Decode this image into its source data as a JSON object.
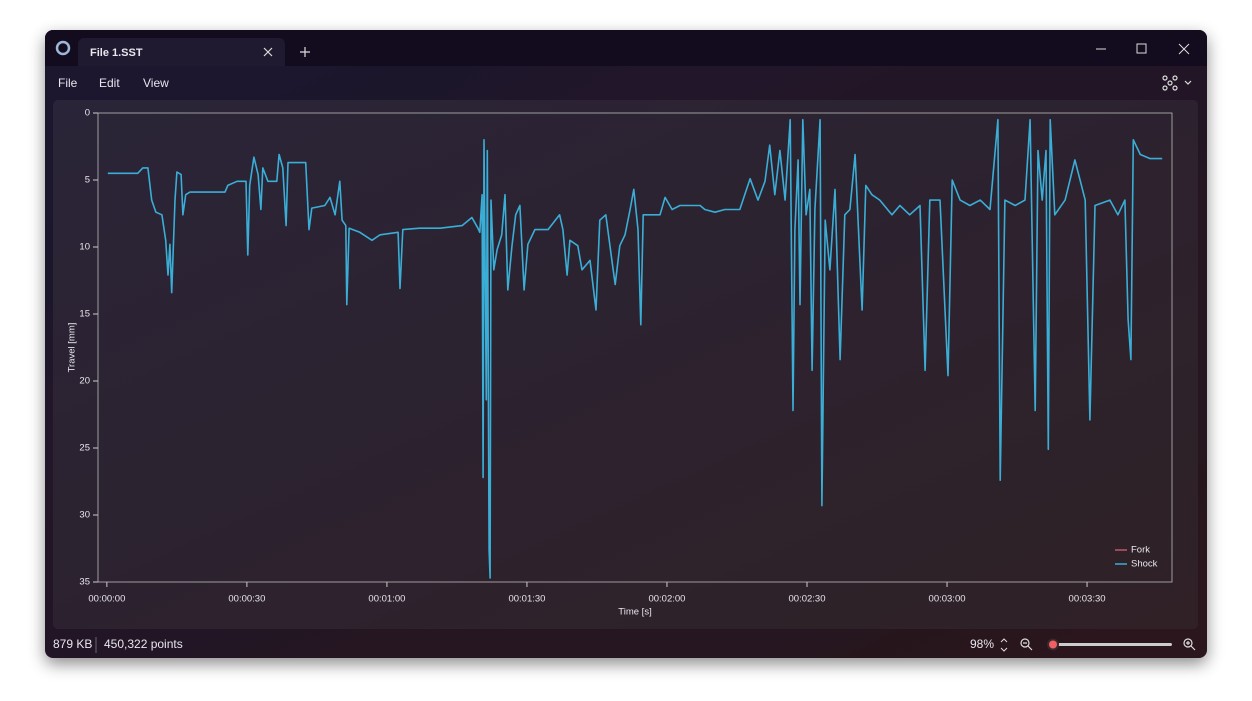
{
  "tab": {
    "title": "File 1.SST"
  },
  "menu": [
    "File",
    "Edit",
    "View"
  ],
  "status": {
    "size": "879 KB",
    "points": "450,322 points",
    "zoom": "98%"
  },
  "chart_data": {
    "type": "line",
    "xlabel": "Time [s]",
    "ylabel": "Travel [mm]",
    "xlim": [
      -1.9,
      228.2
    ],
    "xticks": [
      {
        "value": 0,
        "label": "00:00:00"
      },
      {
        "value": 30,
        "label": "00:00:30"
      },
      {
        "value": 60,
        "label": "00:01:00"
      },
      {
        "value": 90,
        "label": "00:01:30"
      },
      {
        "value": 120,
        "label": "00:02:00"
      },
      {
        "value": 150,
        "label": "00:02:30"
      },
      {
        "value": 180,
        "label": "00:03:00"
      },
      {
        "value": 210,
        "label": "00:03:30"
      }
    ],
    "ylim": [
      35,
      0
    ],
    "yticks": [
      0,
      5,
      10,
      15,
      20,
      25,
      30,
      35
    ],
    "legend": "lower right",
    "x": [
      0.2,
      6.6,
      7.7,
      8.8,
      9.6,
      10.5,
      11.8,
      12.6,
      13.1,
      13.5,
      13.9,
      14.6,
      15.0,
      15.9,
      16.3,
      16.9,
      17.8,
      25.3,
      25.9,
      27.9,
      29.8,
      30.2,
      30.6,
      31.5,
      32.4,
      33.0,
      33.4,
      34.5,
      36.4,
      36.9,
      37.7,
      38.4,
      38.8,
      42.6,
      43.3,
      43.9,
      46.7,
      47.8,
      48.9,
      49.5,
      49.9,
      50.4,
      51.2,
      51.4,
      51.9,
      54.2,
      56.8,
      58.5,
      62.4,
      62.8,
      63.4,
      67.0,
      71.4,
      76.1,
      78.2,
      79.5,
      79.9,
      80.4,
      80.6,
      80.8,
      81.3,
      81.5,
      81.9,
      82.1,
      82.3,
      82.9,
      83.6,
      84.6,
      85.3,
      85.9,
      86.8,
      87.6,
      88.5,
      89.4,
      90.2,
      91.7,
      94.5,
      97.0,
      97.7,
      98.6,
      99.2,
      100.9,
      101.8,
      103.5,
      104.8,
      105.6,
      106.9,
      108.2,
      108.9,
      109.9,
      111.0,
      112.1,
      112.9,
      113.8,
      114.4,
      114.9,
      118.5,
      119.6,
      121.1,
      122.8,
      127.1,
      128.1,
      130.3,
      132.4,
      135.6,
      137.8,
      139.5,
      141.0,
      142.0,
      143.1,
      144.2,
      145.3,
      146.4,
      147.0,
      147.4,
      148.1,
      148.5,
      149.1,
      149.8,
      150.6,
      151.1,
      151.7,
      152.8,
      153.2,
      153.9,
      154.9,
      156.0,
      157.1,
      158.1,
      159.2,
      160.3,
      161.8,
      162.6,
      163.9,
      165.6,
      168.2,
      169.9,
      172.0,
      174.2,
      175.3,
      176.3,
      178.5,
      180.2,
      181.1,
      182.8,
      184.9,
      187.1,
      189.2,
      190.9,
      191.4,
      192.4,
      194.6,
      196.7,
      197.8,
      198.9,
      199.5,
      200.4,
      201.2,
      201.7,
      202.1,
      203.1,
      205.3,
      207.4,
      209.6,
      210.6,
      211.7,
      214.9,
      216.6,
      218.1,
      218.8,
      219.4,
      219.9,
      221.4,
      223.5,
      226.1
    ],
    "series": [
      {
        "name": "Fork",
        "color": "#c0566e",
        "values": [
          null,
          null,
          null,
          null,
          null,
          null,
          null,
          null,
          null,
          null,
          null,
          null,
          null,
          null,
          null,
          null,
          null,
          null,
          null,
          null,
          null,
          null,
          null,
          null,
          null,
          null,
          null,
          null,
          null,
          null,
          null,
          null,
          null,
          null,
          null,
          null,
          null,
          null,
          null,
          null,
          null,
          null,
          null,
          null,
          null,
          null,
          null,
          null,
          null,
          null,
          null,
          null,
          null,
          null,
          null,
          null,
          null,
          null,
          null,
          null,
          null,
          null,
          null,
          null,
          null,
          null,
          null,
          null,
          null,
          null,
          null,
          null,
          null,
          null,
          null,
          null,
          null,
          null,
          null,
          null,
          null,
          null,
          null,
          null,
          null,
          null,
          null,
          null,
          null,
          null,
          null,
          null,
          null,
          null,
          null,
          null,
          null,
          null,
          null,
          null,
          null,
          null,
          null,
          null,
          null,
          null,
          null,
          null,
          null,
          null,
          null,
          null,
          null,
          null,
          null,
          null,
          null,
          null,
          null,
          null,
          null,
          null,
          null,
          null,
          null,
          null,
          null,
          null,
          null,
          null,
          null,
          null,
          null,
          null,
          null,
          null,
          null,
          null,
          null,
          null,
          null,
          null,
          null,
          null,
          null,
          null,
          null,
          null,
          null,
          null,
          null,
          null,
          null,
          null,
          null,
          null,
          null,
          null,
          null,
          null,
          null,
          null,
          null,
          null,
          null,
          null,
          null,
          null,
          null,
          null,
          null,
          null,
          null,
          null,
          null
        ]
      },
      {
        "name": "Shock",
        "color": "#3aaed6",
        "values": [
          4.5,
          4.5,
          4.1,
          4.1,
          6.5,
          7.4,
          7.6,
          9.5,
          12.1,
          9.8,
          13.4,
          6.5,
          4.4,
          4.6,
          7.6,
          6.1,
          5.9,
          5.9,
          5.4,
          5.1,
          5.1,
          10.6,
          5.4,
          3.3,
          4.6,
          7.2,
          4.1,
          5.1,
          5.1,
          3.1,
          4.1,
          8.4,
          3.7,
          3.7,
          8.7,
          7.1,
          6.9,
          6.3,
          7.6,
          6.1,
          5.1,
          8.0,
          8.4,
          14.3,
          8.6,
          8.9,
          9.5,
          9.1,
          8.9,
          13.1,
          8.7,
          8.6,
          8.6,
          8.4,
          7.8,
          8.6,
          8.9,
          6.1,
          27.2,
          2.0,
          21.4,
          2.8,
          32.6,
          34.7,
          6.5,
          11.7,
          10.2,
          9.1,
          6.1,
          13.2,
          9.9,
          7.6,
          6.9,
          13.2,
          9.8,
          8.7,
          8.7,
          7.6,
          8.7,
          12.1,
          9.5,
          9.9,
          11.7,
          11.0,
          14.7,
          8.0,
          7.6,
          11.0,
          12.8,
          9.9,
          9.1,
          7.2,
          5.7,
          8.7,
          15.8,
          7.6,
          7.6,
          6.3,
          7.2,
          6.9,
          6.9,
          7.2,
          7.4,
          7.2,
          7.2,
          4.9,
          6.5,
          5.1,
          2.4,
          6.1,
          2.8,
          6.5,
          0.5,
          22.2,
          8.7,
          3.5,
          14.3,
          0.5,
          7.6,
          5.7,
          19.2,
          7.2,
          0.5,
          29.3,
          8.0,
          11.7,
          5.7,
          18.4,
          7.6,
          7.2,
          3.1,
          14.7,
          5.4,
          6.1,
          6.5,
          7.6,
          6.9,
          7.6,
          6.9,
          19.2,
          6.5,
          6.5,
          19.6,
          5.0,
          6.5,
          6.9,
          6.5,
          7.2,
          0.5,
          27.4,
          6.5,
          6.9,
          6.5,
          0.5,
          22.2,
          2.8,
          6.5,
          2.8,
          25.1,
          0.5,
          7.6,
          6.5,
          3.5,
          6.5,
          22.9,
          6.9,
          6.5,
          7.6,
          6.5,
          15.4,
          18.4,
          2.0,
          3.1,
          3.4,
          3.4
        ]
      }
    ]
  }
}
